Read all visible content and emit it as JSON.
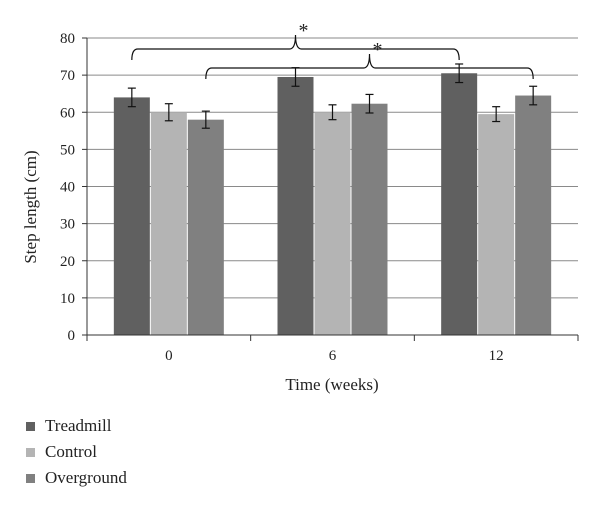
{
  "chart_data": {
    "type": "bar",
    "xlabel": "Time (weeks)",
    "ylabel": "Step length (cm)",
    "ylim": [
      0,
      80
    ],
    "yticks": [
      0,
      10,
      20,
      30,
      40,
      50,
      60,
      70,
      80
    ],
    "categories": [
      "0",
      "6",
      "12"
    ],
    "series": [
      {
        "name": "Treadmill",
        "color": "#606060",
        "values": [
          64,
          69.5,
          70.5
        ],
        "errors": [
          2.5,
          2.5,
          2.5
        ]
      },
      {
        "name": "Control",
        "color": "#b4b4b4",
        "values": [
          60,
          60,
          59.5
        ],
        "errors": [
          2.3,
          2.0,
          2.0
        ]
      },
      {
        "name": "Overground",
        "color": "#808080",
        "values": [
          58,
          62.3,
          64.5
        ],
        "errors": [
          2.3,
          2.5,
          2.5
        ]
      }
    ],
    "significance": [
      {
        "label": "*",
        "from": "Treadmill week 0",
        "to": "Treadmill week 12"
      },
      {
        "label": "*",
        "from": "Overground week 0",
        "to": "Overground week 12"
      }
    ],
    "legend_position": "bottom-left"
  }
}
